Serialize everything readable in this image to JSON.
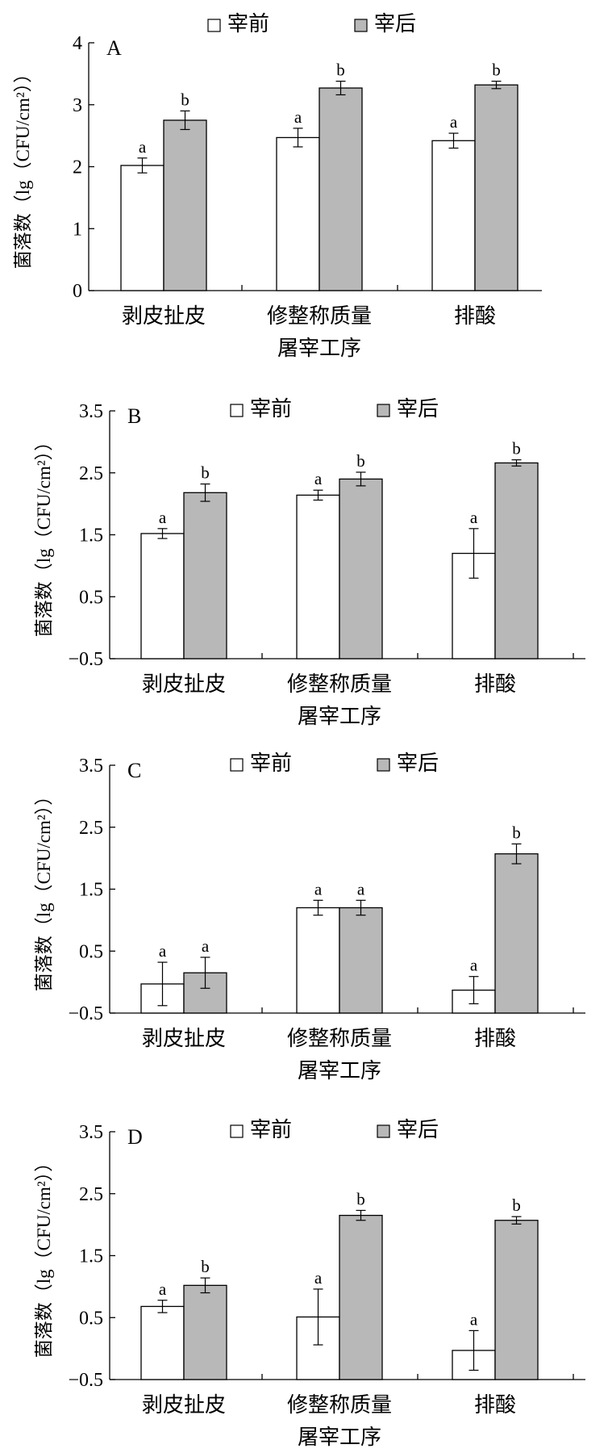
{
  "chart_data": [
    {
      "panel": "A",
      "type": "bar",
      "categories": [
        "剥皮扯皮",
        "修整称质量",
        "排酸"
      ],
      "series": [
        {
          "name": "宰前",
          "color": "#ffffff",
          "values": [
            2.02,
            2.47,
            2.42
          ],
          "errors": [
            0.12,
            0.15,
            0.12
          ],
          "letters": [
            "a",
            "a",
            "a"
          ]
        },
        {
          "name": "宰后",
          "color": "#b8b8b8",
          "values": [
            2.75,
            3.27,
            3.32
          ],
          "errors": [
            0.15,
            0.11,
            0.06
          ],
          "letters": [
            "b",
            "b",
            "b"
          ]
        }
      ],
      "ylim": [
        0,
        4
      ],
      "yticks": [
        "0",
        "1",
        "2",
        "3",
        "4"
      ],
      "ylabel": "菌落数（lg（CFU/cm²））",
      "xlabel": "屠宰工序",
      "legend_position": "top"
    },
    {
      "panel": "B",
      "type": "bar",
      "categories": [
        "剥皮扯皮",
        "修整称质量",
        "排酸"
      ],
      "series": [
        {
          "name": "宰前",
          "color": "#ffffff",
          "values": [
            1.52,
            2.14,
            1.2
          ],
          "errors": [
            0.08,
            0.08,
            0.4
          ],
          "letters": [
            "a",
            "a",
            "a"
          ]
        },
        {
          "name": "宰后",
          "color": "#b8b8b8",
          "values": [
            2.18,
            2.4,
            2.66
          ],
          "errors": [
            0.14,
            0.11,
            0.05
          ],
          "letters": [
            "b",
            "b",
            "b"
          ]
        }
      ],
      "ylim": [
        -0.5,
        3.5
      ],
      "yticks": [
        "−0.5",
        "0.5",
        "1.5",
        "2.5",
        "3.5"
      ],
      "ylabel": "菌落数（lg（CFU/cm²））",
      "xlabel": "屠宰工序",
      "legend_position": "top"
    },
    {
      "panel": "C",
      "type": "bar",
      "categories": [
        "剥皮扯皮",
        "修整称质量",
        "排酸"
      ],
      "series": [
        {
          "name": "宰前",
          "color": "#ffffff",
          "values": [
            -0.03,
            1.2,
            -0.13
          ],
          "errors": [
            0.35,
            0.12,
            0.22
          ],
          "letters": [
            "a",
            "a",
            "a"
          ]
        },
        {
          "name": "宰后",
          "color": "#b8b8b8",
          "values": [
            0.15,
            1.2,
            2.07
          ],
          "errors": [
            0.25,
            0.12,
            0.16
          ],
          "letters": [
            "a",
            "a",
            "b"
          ]
        }
      ],
      "ylim": [
        -0.5,
        3.5
      ],
      "yticks": [
        "−0.5",
        "0.5",
        "1.5",
        "2.5",
        "3.5"
      ],
      "ylabel": "菌落数（lg（CFU/cm²））",
      "xlabel": "屠宰工序",
      "legend_position": "top"
    },
    {
      "panel": "D",
      "type": "bar",
      "categories": [
        "剥皮扯皮",
        "修整称质量",
        "排酸"
      ],
      "series": [
        {
          "name": "宰前",
          "color": "#ffffff",
          "values": [
            0.68,
            0.51,
            -0.03
          ],
          "errors": [
            0.1,
            0.45,
            0.32
          ],
          "letters": [
            "a",
            "a",
            "a"
          ]
        },
        {
          "name": "宰后",
          "color": "#b8b8b8",
          "values": [
            1.02,
            2.15,
            2.07
          ],
          "errors": [
            0.12,
            0.08,
            0.06
          ],
          "letters": [
            "b",
            "b",
            "b"
          ]
        }
      ],
      "ylim": [
        -0.5,
        3.5
      ],
      "yticks": [
        "−0.5",
        "0.5",
        "1.5",
        "2.5",
        "3.5"
      ],
      "ylabel": "菌落数（lg（CFU/cm²））",
      "xlabel": "屠宰工序",
      "legend_position": "top"
    }
  ]
}
